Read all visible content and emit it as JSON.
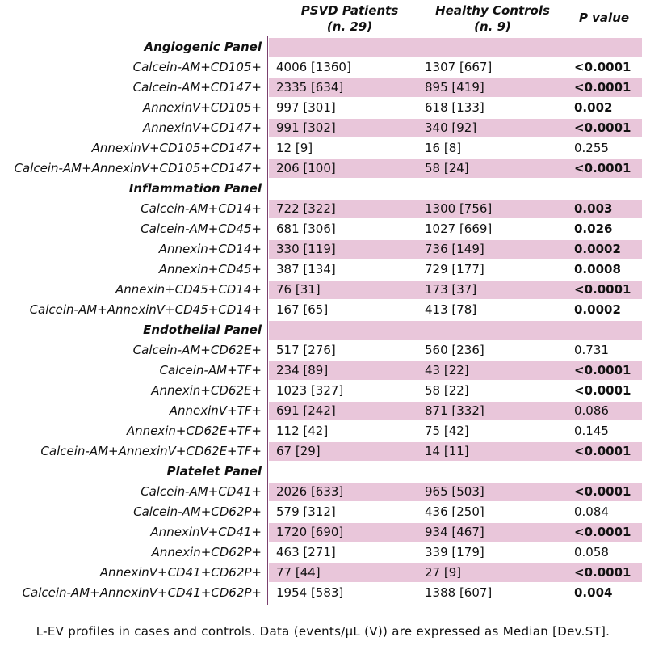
{
  "header": {
    "psvd_line1": "PSVD Patients",
    "psvd_line2": "(n. 29)",
    "hc_line1": "Healthy Controls",
    "hc_line2": "(n. 9)",
    "pvalue": "P value"
  },
  "rows": [
    {
      "type": "section",
      "label": "Angiogenic Panel",
      "shaded": true
    },
    {
      "type": "data",
      "label": "Calcein-AM+CD105+",
      "psvd": "4006 [1360]",
      "hc": "1307 [667]",
      "p": "<0.0001",
      "sig": true,
      "shaded": false
    },
    {
      "type": "data",
      "label": "Calcein-AM+CD147+",
      "psvd": "2335 [634]",
      "hc": "895 [419]",
      "p": "<0.0001",
      "sig": true,
      "shaded": true
    },
    {
      "type": "data",
      "label": "AnnexinV+CD105+",
      "psvd": "997 [301]",
      "hc": "618 [133]",
      "p": "0.002",
      "sig": true,
      "shaded": false
    },
    {
      "type": "data",
      "label": "AnnexinV+CD147+",
      "psvd": "991 [302]",
      "hc": "340 [92]",
      "p": "<0.0001",
      "sig": true,
      "shaded": true
    },
    {
      "type": "data",
      "label": "AnnexinV+CD105+CD147+",
      "psvd": "12 [9]",
      "hc": "16 [8]",
      "p": "0.255",
      "sig": false,
      "shaded": false
    },
    {
      "type": "data",
      "label": "Calcein-AM+AnnexinV+CD105+CD147+",
      "psvd": "206 [100]",
      "hc": "58 [24]",
      "p": "<0.0001",
      "sig": true,
      "shaded": true
    },
    {
      "type": "section",
      "label": "Inflammation Panel",
      "shaded": false
    },
    {
      "type": "data",
      "label": "Calcein-AM+CD14+",
      "psvd": "722 [322]",
      "hc": "1300 [756]",
      "p": "0.003",
      "sig": true,
      "shaded": true
    },
    {
      "type": "data",
      "label": "Calcein-AM+CD45+",
      "psvd": "681 [306]",
      "hc": "1027 [669]",
      "p": "0.026",
      "sig": true,
      "shaded": false
    },
    {
      "type": "data",
      "label": "Annexin+CD14+",
      "psvd": "330 [119]",
      "hc": "736 [149]",
      "p": "0.0002",
      "sig": true,
      "shaded": true
    },
    {
      "type": "data",
      "label": "Annexin+CD45+",
      "psvd": "387 [134]",
      "hc": "729 [177]",
      "p": "0.0008",
      "sig": true,
      "shaded": false
    },
    {
      "type": "data",
      "label": "Annexin+CD45+CD14+",
      "psvd": "76 [31]",
      "hc": "173 [37]",
      "p": "<0.0001",
      "sig": true,
      "shaded": true
    },
    {
      "type": "data",
      "label": "Calcein-AM+AnnexinV+CD45+CD14+",
      "psvd": "167 [65]",
      "hc": "413 [78]",
      "p": "0.0002",
      "sig": true,
      "shaded": false
    },
    {
      "type": "section",
      "label": "Endothelial Panel",
      "shaded": true
    },
    {
      "type": "data",
      "label": "Calcein-AM+CD62E+",
      "psvd": "517 [276]",
      "hc": "560 [236]",
      "p": "0.731",
      "sig": false,
      "shaded": false
    },
    {
      "type": "data",
      "label": "Calcein-AM+TF+",
      "psvd": "234 [89]",
      "hc": "43 [22]",
      "p": "<0.0001",
      "sig": true,
      "shaded": true
    },
    {
      "type": "data",
      "label": "Annexin+CD62E+",
      "psvd": "1023 [327]",
      "hc": "58 [22]",
      "p": "<0.0001",
      "sig": true,
      "shaded": false
    },
    {
      "type": "data",
      "label": "AnnexinV+TF+",
      "psvd": "691 [242]",
      "hc": "871 [332]",
      "p": "0.086",
      "sig": false,
      "shaded": true
    },
    {
      "type": "data",
      "label": "Annexin+CD62E+TF+",
      "psvd": "112 [42]",
      "hc": "75 [42]",
      "p": "0.145",
      "sig": false,
      "shaded": false
    },
    {
      "type": "data",
      "label": "Calcein-AM+AnnexinV+CD62E+TF+",
      "psvd": "67 [29]",
      "hc": "14 [11]",
      "p": "<0.0001",
      "sig": true,
      "shaded": true
    },
    {
      "type": "section",
      "label": "Platelet Panel",
      "shaded": false
    },
    {
      "type": "data",
      "label": "Calcein-AM+CD41+",
      "psvd": "2026 [633]",
      "hc": "965 [503]",
      "p": "<0.0001",
      "sig": true,
      "shaded": true
    },
    {
      "type": "data",
      "label": "Calcein-AM+CD62P+",
      "psvd": "579 [312]",
      "hc": "436 [250]",
      "p": "0.084",
      "sig": false,
      "shaded": false
    },
    {
      "type": "data",
      "label": "AnnexinV+CD41+",
      "psvd": "1720 [690]",
      "hc": "934 [467]",
      "p": "<0.0001",
      "sig": true,
      "shaded": true
    },
    {
      "type": "data",
      "label": "Annexin+CD62P+",
      "psvd": "463 [271]",
      "hc": "339 [179]",
      "p": "0.058",
      "sig": false,
      "shaded": false
    },
    {
      "type": "data",
      "label": "AnnexinV+CD41+CD62P+",
      "psvd": "77 [44]",
      "hc": "27 [9]",
      "p": "<0.0001",
      "sig": true,
      "shaded": true
    },
    {
      "type": "data",
      "label": "Calcein-AM+AnnexinV+CD41+CD62P+",
      "psvd": "1954 [583]",
      "hc": "1388 [607]",
      "p": "0.004",
      "sig": true,
      "shaded": false
    }
  ],
  "caption": "L-EV profiles in cases and controls. Data (events/µL (V)) are expressed as Median [Dev.ST]."
}
